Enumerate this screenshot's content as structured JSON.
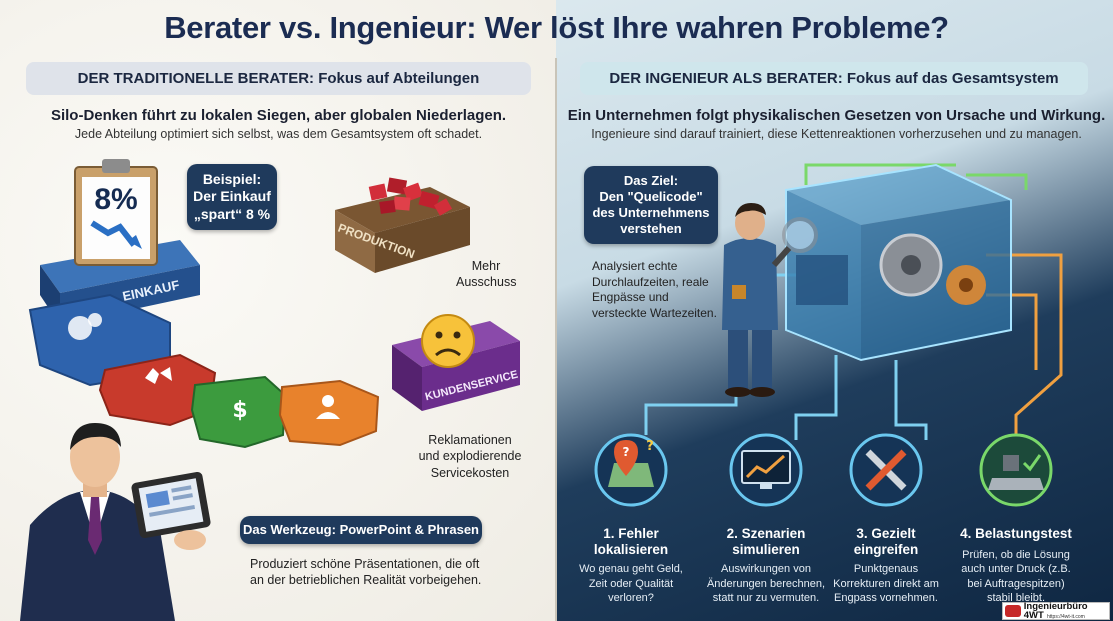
{
  "title": "Berater vs. Ingenieur: Wer löst Ihre wahren Probleme?",
  "left": {
    "header": "DER TRADITIONELLE BERATER: Fokus auf Abteilungen",
    "subtitle": "Silo-Denken führt zu lokalen Siegen, aber globalen Niederlagen.",
    "subtext": "Jede Abteilung optimiert sich selbst, was dem Gesamtsystem oft schadet.",
    "clipboard_value": "8%",
    "example_bubble_line1": "Beispiel:",
    "example_bubble_line2": "Der Einkauf",
    "example_bubble_line3": "„spart“ 8 %",
    "block_production": "PRODUKTION",
    "production_note_line1": "Mehr",
    "production_note_line2": "Ausschuss",
    "gear_einkauf": "EINKAUF",
    "block_service": "KUNDENSERVICE",
    "service_note_line1": "Reklamationen",
    "service_note_line2": "und explodierende",
    "service_note_line3": "Servicekosten",
    "tool_bubble": "Das Werkzeug: PowerPoint & Phrasen",
    "tool_note_line1": "Produziert schöne Präsentationen, die oft",
    "tool_note_line2": "an der betrieblichen Realität vorbeigehen."
  },
  "right": {
    "header": "DER INGENIEUR ALS BERATER: Fokus auf das Gesamtsystem",
    "subtitle": "Ein Unternehmen folgt physikalischen Gesetzen von Ursache und Wirkung.",
    "subtext": "Ingenieure sind darauf trainiert, diese Kettenreaktionen vorherzusehen und zu managen.",
    "goal_line1": "Das Ziel:",
    "goal_line2": "Den \"Quelicode\"",
    "goal_line3": "des Unternehmens",
    "goal_line4": "verstehen",
    "analysis_line1": "Analysiert echte",
    "analysis_line2": "Durchlaufzeiten, reale",
    "analysis_line3": "Engpässe und",
    "analysis_line4": "versteckte Wartezeiten.",
    "steps": [
      {
        "title1": "1. Fehler",
        "title2": "lokalisieren",
        "desc1": "Wo genau geht Geld,",
        "desc2": "Zeit oder Qualität",
        "desc3": "verloren?"
      },
      {
        "title1": "2. Szenarien",
        "title2": "simulieren",
        "desc1": "Auswirkungen von",
        "desc2": "Änderungen berechnen,",
        "desc3": "statt nur zu vermuten."
      },
      {
        "title1": "3. Gezielt",
        "title2": "eingreifen",
        "desc1": "Punktgenaus",
        "desc2": "Korrekturen direkt am",
        "desc3": "Engpass vornehmen."
      },
      {
        "title1": "4. Belastungstest",
        "title2": "",
        "desc1": "Prüfen, ob die Lösung",
        "desc2": "auch unter Druck (z.B.",
        "desc3": "bei Auftragespitzen)",
        "desc4": "stabil bleibt."
      }
    ]
  },
  "logo": {
    "name": "Ingenieurbüro 4WT",
    "url": "https://4wt-it.com"
  },
  "colors": {
    "navy": "#1f3a5c",
    "title": "#1b2c52",
    "einkauf": "#2a5fa8",
    "red": "#c83a2c",
    "green": "#3c9b3e",
    "orange": "#e8822c",
    "purple": "#7a3a9a"
  }
}
